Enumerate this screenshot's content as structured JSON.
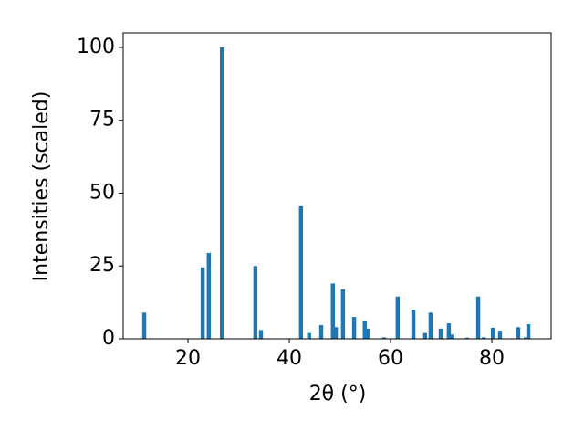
{
  "chart_data": {
    "type": "bar",
    "x_label": "2θ (°)",
    "y_label": "Intensities (scaled)",
    "x": [
      11.35,
      22.9,
      24.1,
      26.7,
      33.3,
      34.4,
      42.3,
      43.9,
      46.3,
      48.6,
      49.2,
      50.6,
      52.8,
      54.9,
      55.5,
      58.7,
      61.4,
      64.5,
      66.8,
      67.9,
      69.9,
      71.5,
      72.0,
      75.1,
      77.3,
      78.4,
      80.2,
      81.6,
      85.2,
      86.7,
      87.2
    ],
    "values": [
      9,
      24.5,
      29.5,
      100,
      25,
      3,
      45.5,
      2,
      4.7,
      19,
      4,
      17,
      7.5,
      6,
      3.5,
      0.5,
      14.5,
      10,
      2,
      9,
      3.5,
      5.3,
      1.5,
      0.4,
      14.5,
      0.5,
      3.8,
      2.8,
      4,
      0.5,
      5
    ],
    "color": "#1f77b4",
    "xlim": [
      7.2,
      91.7
    ],
    "ylim": [
      0,
      105
    ],
    "xticks": [
      20,
      40,
      60,
      80
    ],
    "yticks": [
      0,
      25,
      50,
      75,
      100
    ]
  }
}
